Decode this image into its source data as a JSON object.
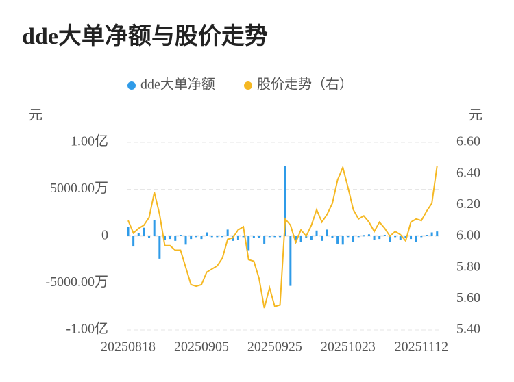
{
  "chart_data": {
    "type": "bar-line",
    "title": "dde大单净额与股价走势",
    "y_label": "元",
    "y2_label": "元",
    "categories": [
      "20250818",
      null,
      null,
      null,
      null,
      null,
      null,
      null,
      null,
      null,
      null,
      null,
      null,
      null,
      "20250905",
      null,
      null,
      null,
      null,
      null,
      null,
      null,
      null,
      null,
      null,
      null,
      null,
      null,
      "20250925",
      null,
      null,
      null,
      null,
      null,
      null,
      null,
      null,
      null,
      null,
      null,
      null,
      null,
      "20251023",
      null,
      null,
      null,
      null,
      null,
      null,
      null,
      null,
      null,
      null,
      null,
      null,
      null,
      "20251112",
      null,
      null,
      null
    ],
    "series": [
      {
        "name": "dde大单净额",
        "type": "bar",
        "color": "#2f9be8",
        "values": [
          1000,
          -1100,
          300,
          900,
          -200,
          1700,
          -2400,
          -400,
          -300,
          -500,
          100,
          -900,
          -300,
          -100,
          -300,
          400,
          -100,
          -100,
          -100,
          700,
          -500,
          -400,
          -100,
          -1500,
          -200,
          -200,
          -800,
          -100,
          -100,
          -100,
          7500,
          -5300,
          -700,
          -600,
          -200,
          -400,
          600,
          -500,
          700,
          -200,
          -800,
          -900,
          -100,
          -600,
          -100,
          50,
          200,
          -400,
          -300,
          100,
          -600,
          -100,
          -400,
          -200,
          -300,
          -600,
          -100,
          100,
          400,
          500
        ]
      },
      {
        "name": "股价走势（右）",
        "type": "line",
        "axis": "y2",
        "color": "#f5b823",
        "values": [
          6.1,
          6.02,
          6.05,
          6.07,
          6.12,
          6.28,
          6.14,
          5.94,
          5.94,
          5.91,
          5.91,
          5.8,
          5.69,
          5.68,
          5.69,
          5.77,
          5.79,
          5.81,
          5.86,
          5.98,
          5.99,
          6.04,
          6.06,
          5.85,
          5.84,
          5.73,
          5.54,
          5.67,
          5.55,
          5.56,
          6.11,
          6.07,
          5.96,
          6.04,
          6.0,
          6.07,
          6.17,
          6.09,
          6.14,
          6.21,
          6.36,
          6.44,
          6.31,
          6.17,
          6.11,
          6.13,
          6.09,
          6.03,
          6.09,
          6.05,
          6.0,
          6.03,
          6.01,
          5.97,
          6.09,
          6.11,
          6.1,
          6.16,
          6.21,
          6.45
        ]
      }
    ],
    "ylim": [
      -10000,
      10000
    ],
    "yticks": [
      {
        "value": 10000,
        "label": "1.00亿"
      },
      {
        "value": 5000,
        "label": "5000.00万"
      },
      0,
      {
        "value": -5000,
        "label": "-5000.00万"
      },
      {
        "value": -10000,
        "label": "-1.00亿"
      }
    ],
    "y2lim": [
      5.4,
      6.6
    ],
    "y2ticks": [
      {
        "value": 6.6,
        "label": "6.60"
      },
      {
        "value": 6.4,
        "label": "6.40"
      },
      {
        "value": 6.2,
        "label": "6.20"
      },
      {
        "value": 6.0,
        "label": "6.00"
      },
      {
        "value": 5.8,
        "label": "5.80"
      },
      {
        "value": 5.6,
        "label": "5.60"
      },
      {
        "value": 5.4,
        "label": "5.40"
      }
    ],
    "grid": true
  }
}
